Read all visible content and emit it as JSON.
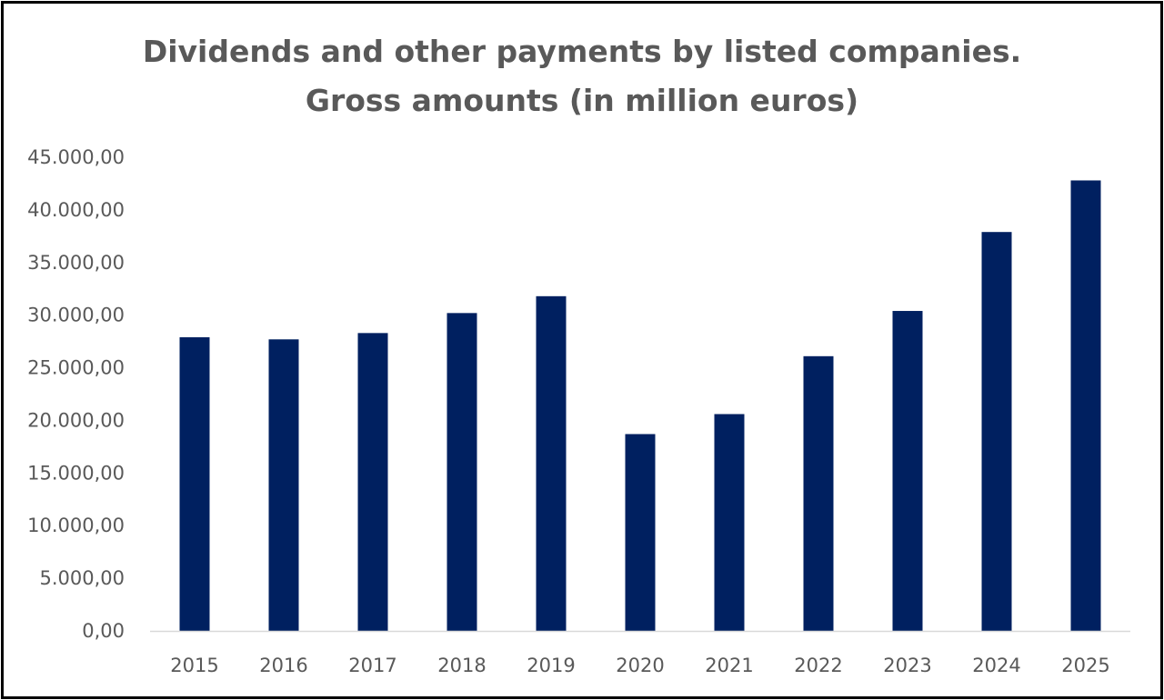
{
  "chart_data": {
    "type": "bar",
    "title_lines": [
      "Dividends and other payments by listed companies.",
      "Gross amounts (in million euros)"
    ],
    "xlabel": "",
    "ylabel": "",
    "categories": [
      "2015",
      "2016",
      "2017",
      "2018",
      "2019",
      "2020",
      "2021",
      "2022",
      "2023",
      "2024",
      "2025"
    ],
    "series": [
      {
        "values": [
          27900,
          27700,
          28300,
          30200,
          31800,
          18700,
          20600,
          26100,
          30400,
          37900,
          42800
        ],
        "color": "#002060"
      }
    ],
    "ylim": [
      0,
      45000
    ],
    "y_ticks": [
      0,
      5000,
      10000,
      15000,
      20000,
      25000,
      30000,
      35000,
      40000,
      45000
    ],
    "y_tick_labels": [
      "0,00",
      "5.000,00",
      "10.000,00",
      "15.000,00",
      "20.000,00",
      "25.000,00",
      "30.000,00",
      "35.000,00",
      "40.000,00",
      "45.000,00"
    ],
    "grid": false,
    "legend": "none",
    "axis_color": "#d9d9d9",
    "text_color": "#595959",
    "border_color": "#000000"
  }
}
